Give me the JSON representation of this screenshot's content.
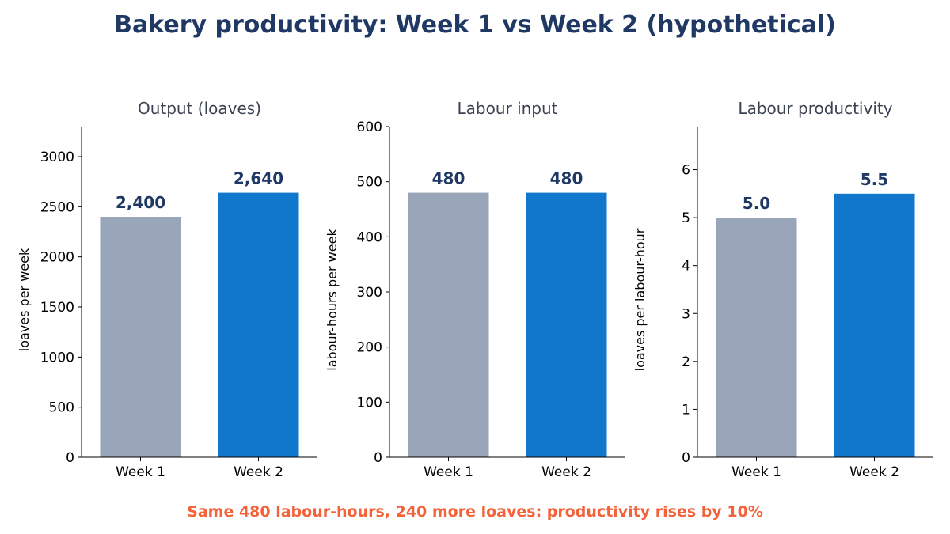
{
  "title": "Bakery productivity: Week 1 vs Week 2 (hypothetical)",
  "footnote": "Same 480 labour-hours, 240 more loaves: productivity rises by 10%",
  "colors": {
    "week1": "#99a5b8",
    "week2": "#1177cc",
    "title": "#1f3864",
    "footnote": "#f4623a"
  },
  "chart_data": [
    {
      "type": "bar",
      "title": "Output (loaves)",
      "categories": [
        "Week 1",
        "Week 2"
      ],
      "values": [
        2400,
        2640
      ],
      "data_labels": [
        "2,400",
        "2,640"
      ],
      "ylabel": "loaves per week",
      "ylim": [
        0,
        3300
      ],
      "yticks": [
        0,
        500,
        1000,
        1500,
        2000,
        2500,
        3000
      ],
      "grid": false,
      "legend": "none"
    },
    {
      "type": "bar",
      "title": "Labour input",
      "categories": [
        "Week 1",
        "Week 2"
      ],
      "values": [
        480,
        480
      ],
      "data_labels": [
        "480",
        "480"
      ],
      "ylabel": "labour-hours per week",
      "ylim": [
        0,
        600
      ],
      "yticks": [
        0,
        100,
        200,
        300,
        400,
        500,
        600
      ],
      "grid": false,
      "legend": "none"
    },
    {
      "type": "bar",
      "title": "Labour productivity",
      "categories": [
        "Week 1",
        "Week 2"
      ],
      "values": [
        5.0,
        5.5
      ],
      "data_labels": [
        "5.0",
        "5.5"
      ],
      "ylabel": "loaves per labour-hour",
      "ylim": [
        0,
        6.9
      ],
      "yticks": [
        0,
        1,
        2,
        3,
        4,
        5,
        6
      ],
      "grid": false,
      "legend": "none"
    }
  ]
}
